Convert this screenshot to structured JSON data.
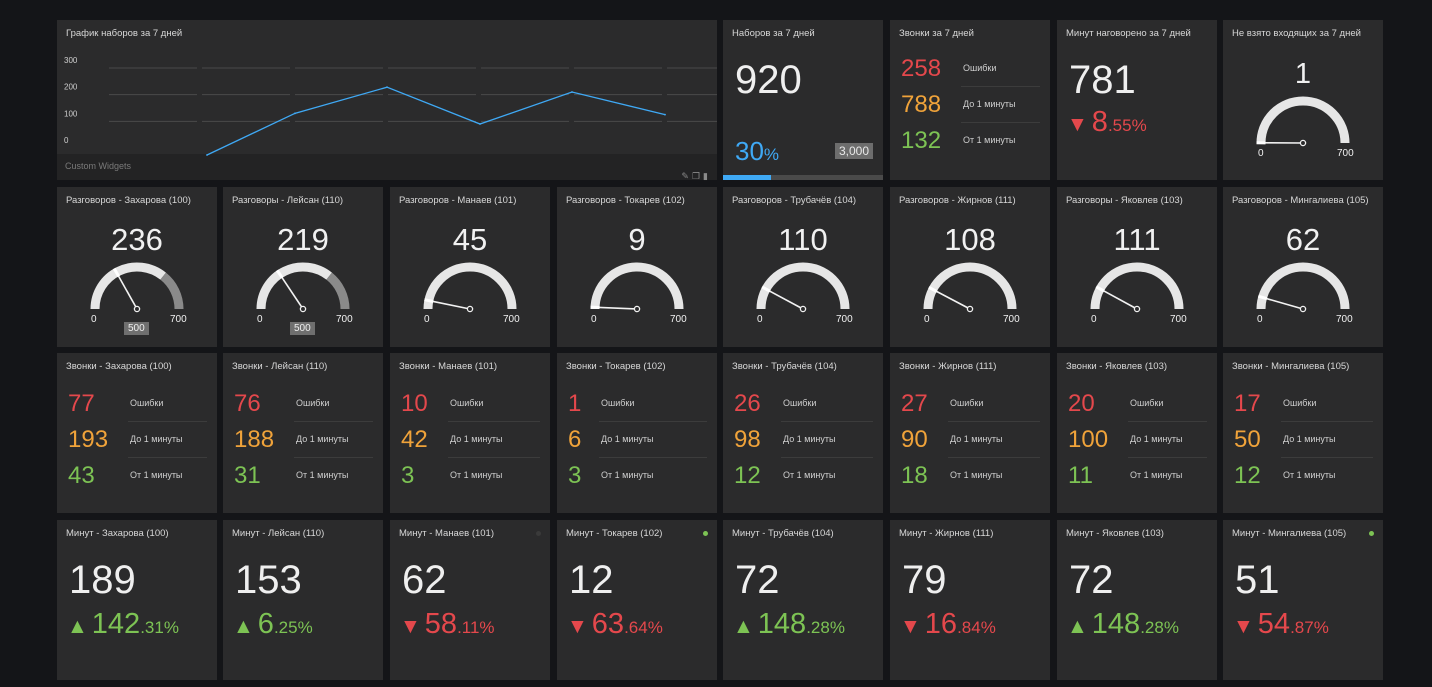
{
  "colors": {
    "red": "#e4484c",
    "orange": "#f0a33a",
    "green": "#7dc354",
    "blue": "#3fa9f5",
    "tile": "#2b2b2c",
    "gauge_track": "#e6e6e6",
    "gauge_threshold": "#8a8a8a"
  },
  "chart_widget": {
    "title": "График наборов за 7 дней",
    "footer": "Custom Widgets",
    "tools_icons": [
      "pencil-icon",
      "copy-icon",
      "trash-icon"
    ],
    "chart_data": {
      "type": "line",
      "ylim": [
        0,
        300
      ],
      "yticks": [
        "300",
        "200",
        "100",
        "0"
      ],
      "grid": true,
      "series": [
        {
          "values": [
            0,
            130,
            228,
            90,
            210,
            125
          ]
        }
      ]
    }
  },
  "dials_widget": {
    "title": "Наборов за 7 дней",
    "value": "920",
    "percent": "30",
    "percent_unit": "%",
    "target": "3,000",
    "progress": 0.3
  },
  "calls_total": {
    "title": "Звонки за 7 дней",
    "rows": [
      {
        "value": "258",
        "label": "Ошибки",
        "color": "red"
      },
      {
        "value": "788",
        "label": "До 1 минуты",
        "color": "orange"
      },
      {
        "value": "132",
        "label": "От 1 минуты",
        "color": "green"
      }
    ]
  },
  "minutes_total": {
    "title": "Минут наговорено за 7 дней",
    "value": "781",
    "delta_int": "8",
    "delta_dec": ".55%",
    "direction": "down"
  },
  "missed_incoming": {
    "title": "Не взято входящих за 7 дней",
    "value": "1",
    "min": "0",
    "max": "700",
    "max_value": 700,
    "current": 1
  },
  "gauges": [
    {
      "title": "Разговоров - Захарова (100)",
      "value": "236",
      "current": 236,
      "min": "0",
      "max": "700",
      "max_value": 700,
      "target": "500",
      "target_value": 500
    },
    {
      "title": "Разговоры - Лейсан (110)",
      "value": "219",
      "current": 219,
      "min": "0",
      "max": "700",
      "max_value": 700,
      "target": "500",
      "target_value": 500
    },
    {
      "title": "Разговоров - Манаев (101)",
      "value": "45",
      "current": 45,
      "min": "0",
      "max": "700",
      "max_value": 700
    },
    {
      "title": "Разговоров - Токарев (102)",
      "value": "9",
      "current": 9,
      "min": "0",
      "max": "700",
      "max_value": 700
    },
    {
      "title": "Разговоров - Трубачёв (104)",
      "value": "110",
      "current": 110,
      "min": "0",
      "max": "700",
      "max_value": 700
    },
    {
      "title": "Разговоров - Жирнов (111)",
      "value": "108",
      "current": 108,
      "min": "0",
      "max": "700",
      "max_value": 700
    },
    {
      "title": "Разговоры - Яковлев (103)",
      "value": "111",
      "current": 111,
      "min": "0",
      "max": "700",
      "max_value": 700
    },
    {
      "title": "Разговоров - Мингалиева (105)",
      "value": "62",
      "current": 62,
      "min": "0",
      "max": "700",
      "max_value": 700
    }
  ],
  "call_stats": [
    {
      "title": "Звонки - Захарова (100)",
      "rows": [
        {
          "value": "77",
          "label": "Ошибки",
          "color": "red"
        },
        {
          "value": "193",
          "label": "До 1 минуты",
          "color": "orange"
        },
        {
          "value": "43",
          "label": "От 1 минуты",
          "color": "green"
        }
      ]
    },
    {
      "title": "Звонки - Лейсан (110)",
      "rows": [
        {
          "value": "76",
          "label": "Ошибки",
          "color": "red"
        },
        {
          "value": "188",
          "label": "До 1 минуты",
          "color": "orange"
        },
        {
          "value": "31",
          "label": "От 1 минуты",
          "color": "green"
        }
      ]
    },
    {
      "title": "Звонки - Манаев (101)",
      "rows": [
        {
          "value": "10",
          "label": "Ошибки",
          "color": "red"
        },
        {
          "value": "42",
          "label": "До 1 минуты",
          "color": "orange"
        },
        {
          "value": "3",
          "label": "От 1 минуты",
          "color": "green"
        }
      ]
    },
    {
      "title": "Звонки - Токарев (102)",
      "rows": [
        {
          "value": "1",
          "label": "Ошибки",
          "color": "red"
        },
        {
          "value": "6",
          "label": "До 1 минуты",
          "color": "orange"
        },
        {
          "value": "3",
          "label": "От 1 минуты",
          "color": "green"
        }
      ]
    },
    {
      "title": "Звонки - Трубачёв (104)",
      "rows": [
        {
          "value": "26",
          "label": "Ошибки",
          "color": "red"
        },
        {
          "value": "98",
          "label": "До 1 минуты",
          "color": "orange"
        },
        {
          "value": "12",
          "label": "От 1 минуты",
          "color": "green"
        }
      ]
    },
    {
      "title": "Звонки - Жирнов (111)",
      "rows": [
        {
          "value": "27",
          "label": "Ошибки",
          "color": "red"
        },
        {
          "value": "90",
          "label": "До 1 минуты",
          "color": "orange"
        },
        {
          "value": "18",
          "label": "От 1 минуты",
          "color": "green"
        }
      ]
    },
    {
      "title": "Звонки - Яковлев (103)",
      "rows": [
        {
          "value": "20",
          "label": "Ошибки",
          "color": "red"
        },
        {
          "value": "100",
          "label": "До 1 минуты",
          "color": "orange"
        },
        {
          "value": "11",
          "label": "От 1 минуты",
          "color": "green"
        }
      ]
    },
    {
      "title": "Звонки - Мингалиева (105)",
      "rows": [
        {
          "value": "17",
          "label": "Ошибки",
          "color": "red"
        },
        {
          "value": "50",
          "label": "До 1 минуты",
          "color": "orange"
        },
        {
          "value": "12",
          "label": "От 1 минуты",
          "color": "green"
        }
      ]
    }
  ],
  "minutes": [
    {
      "title": "Минут - Захарова (100)",
      "value": "189",
      "delta_int": "142",
      "delta_dec": ".31%",
      "direction": "up",
      "dot": ""
    },
    {
      "title": "Минут - Лейсан (110)",
      "value": "153",
      "delta_int": "6",
      "delta_dec": ".25%",
      "direction": "up",
      "dot": ""
    },
    {
      "title": "Минут - Манаев (101)",
      "value": "62",
      "delta_int": "58",
      "delta_dec": ".11%",
      "direction": "down",
      "dot": "#3a3a3a"
    },
    {
      "title": "Минут - Токарев (102)",
      "value": "12",
      "delta_int": "63",
      "delta_dec": ".64%",
      "direction": "down",
      "dot": "#7dc354"
    },
    {
      "title": "Минут - Трубачёв (104)",
      "value": "72",
      "delta_int": "148",
      "delta_dec": ".28%",
      "direction": "up",
      "dot": ""
    },
    {
      "title": "Минут - Жирнов (111)",
      "value": "79",
      "delta_int": "16",
      "delta_dec": ".84%",
      "direction": "down",
      "dot": ""
    },
    {
      "title": "Минут - Яковлев (103)",
      "value": "72",
      "delta_int": "148",
      "delta_dec": ".28%",
      "direction": "up",
      "dot": ""
    },
    {
      "title": "Минут - Мингалиева (105)",
      "value": "51",
      "delta_int": "54",
      "delta_dec": ".87%",
      "direction": "down",
      "dot": "#7dc354"
    }
  ]
}
